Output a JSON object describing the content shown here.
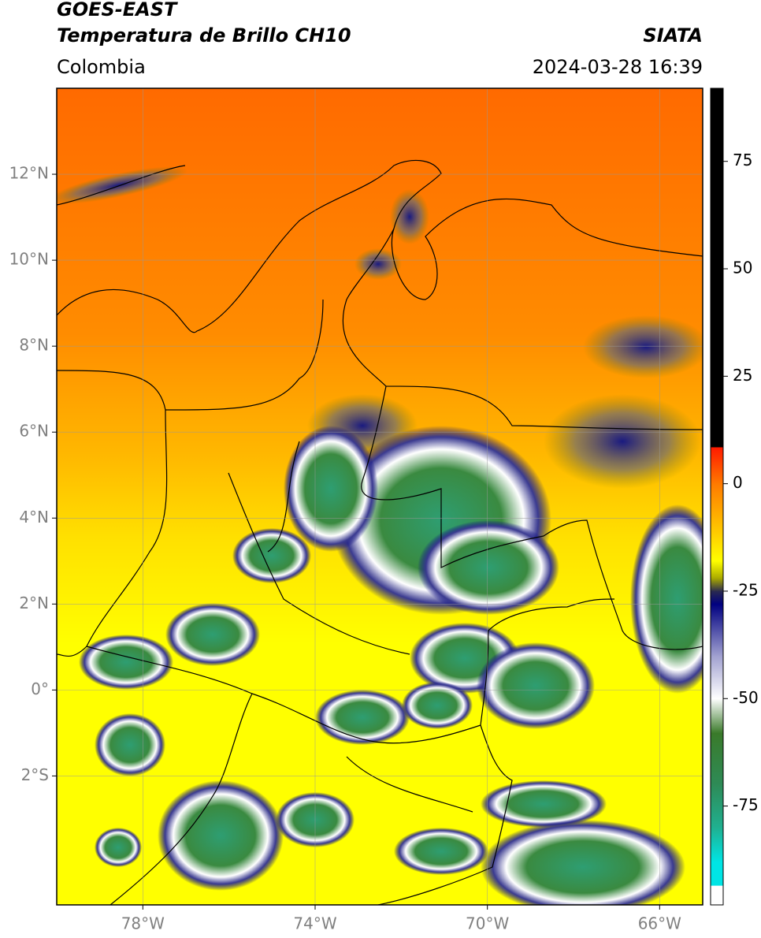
{
  "header": {
    "title": "GOES-EAST",
    "subtitle": "Temperatura de Brillo CH10",
    "region": "Colombia",
    "source": "SIATA",
    "timestamp": "2024-03-28 16:39"
  },
  "map": {
    "xlim": [
      -80,
      -65
    ],
    "ylim": [
      -5,
      14
    ],
    "xticks": [
      {
        "value": -78,
        "label": "78°W"
      },
      {
        "value": -74,
        "label": "74°W"
      },
      {
        "value": -70,
        "label": "70°W"
      },
      {
        "value": -66,
        "label": "66°W"
      }
    ],
    "yticks": [
      {
        "value": 12,
        "label": "12°N"
      },
      {
        "value": 10,
        "label": "10°N"
      },
      {
        "value": 8,
        "label": "8°N"
      },
      {
        "value": 6,
        "label": "6°N"
      },
      {
        "value": 4,
        "label": "4°N"
      },
      {
        "value": 2,
        "label": "2°N"
      },
      {
        "value": 0,
        "label": "0°"
      },
      {
        "value": -2,
        "label": "2°S"
      }
    ],
    "grid": true
  },
  "colorbar": {
    "lim": [
      -98,
      92
    ],
    "ticks": [
      75,
      50,
      25,
      0,
      -25,
      -50,
      -75
    ],
    "stops": [
      {
        "value": 92,
        "color": "#000000"
      },
      {
        "value": 8.6,
        "color": "#000000"
      },
      {
        "value": 8.4,
        "color": "#ff1a00"
      },
      {
        "value": 0,
        "color": "#ff7a00"
      },
      {
        "value": -12,
        "color": "#ffd000"
      },
      {
        "value": -18,
        "color": "#ffff00"
      },
      {
        "value": -22,
        "color": "#a8a800"
      },
      {
        "value": -25,
        "color": "#2a2a50"
      },
      {
        "value": -28,
        "color": "#000080"
      },
      {
        "value": -40,
        "color": "#a0a0d0"
      },
      {
        "value": -50,
        "color": "#ffffff"
      },
      {
        "value": -58,
        "color": "#3a7a2a"
      },
      {
        "value": -70,
        "color": "#2e8b57"
      },
      {
        "value": -80,
        "color": "#20b090"
      },
      {
        "value": -88,
        "color": "#00e5e5"
      },
      {
        "value": -93.4,
        "color": "#00e5e5"
      },
      {
        "value": -93.6,
        "color": "#ffffff"
      },
      {
        "value": -98,
        "color": "#ffffff"
      }
    ]
  }
}
